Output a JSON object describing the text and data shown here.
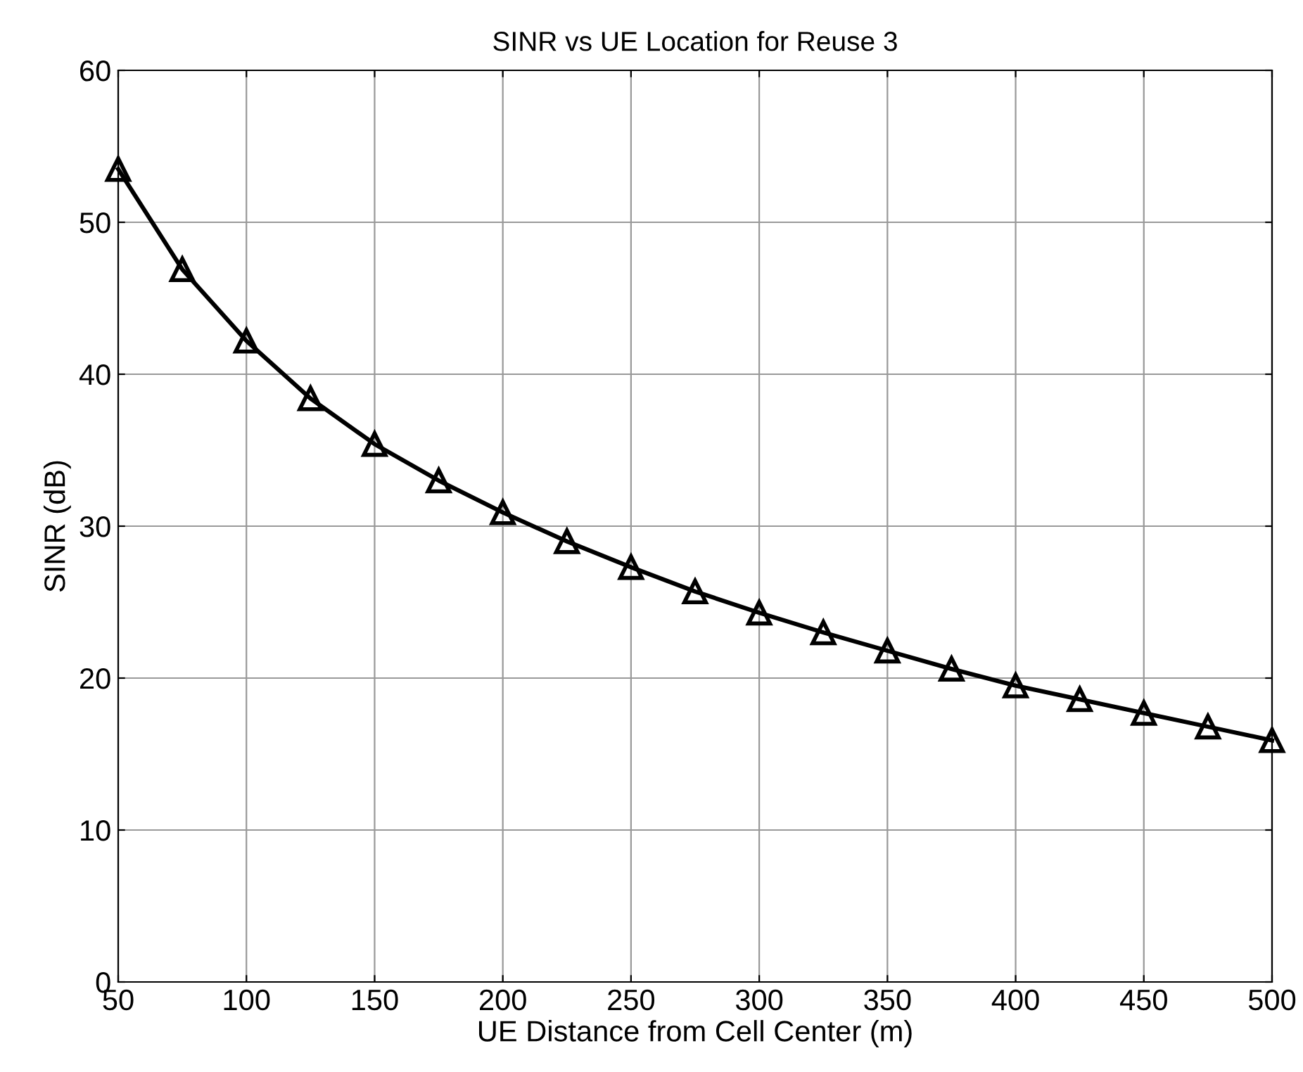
{
  "chart_data": {
    "type": "line",
    "title": "SINR vs UE Location for Reuse 3",
    "xlabel": "UE Distance from Cell Center (m)",
    "ylabel": "SINR (dB)",
    "x": [
      50,
      75,
      100,
      125,
      150,
      175,
      200,
      225,
      250,
      275,
      300,
      325,
      350,
      375,
      400,
      425,
      450,
      475,
      500
    ],
    "series": [
      {
        "color": "#000000",
        "values": [
          53.5,
          46.9,
          42.2,
          38.4,
          35.4,
          33.0,
          30.9,
          29.0,
          27.3,
          25.7,
          24.3,
          23.0,
          21.8,
          20.6,
          19.5,
          18.6,
          17.7,
          16.8,
          15.9
        ]
      }
    ],
    "xlim": [
      50,
      500
    ],
    "xticks": [
      50,
      100,
      150,
      200,
      250,
      300,
      350,
      400,
      450,
      500
    ],
    "ylim": [
      0,
      60
    ],
    "yticks": [
      0,
      10,
      20,
      30,
      40,
      50,
      60
    ],
    "grid": true,
    "marker": "triangle",
    "line_style": "solid"
  }
}
